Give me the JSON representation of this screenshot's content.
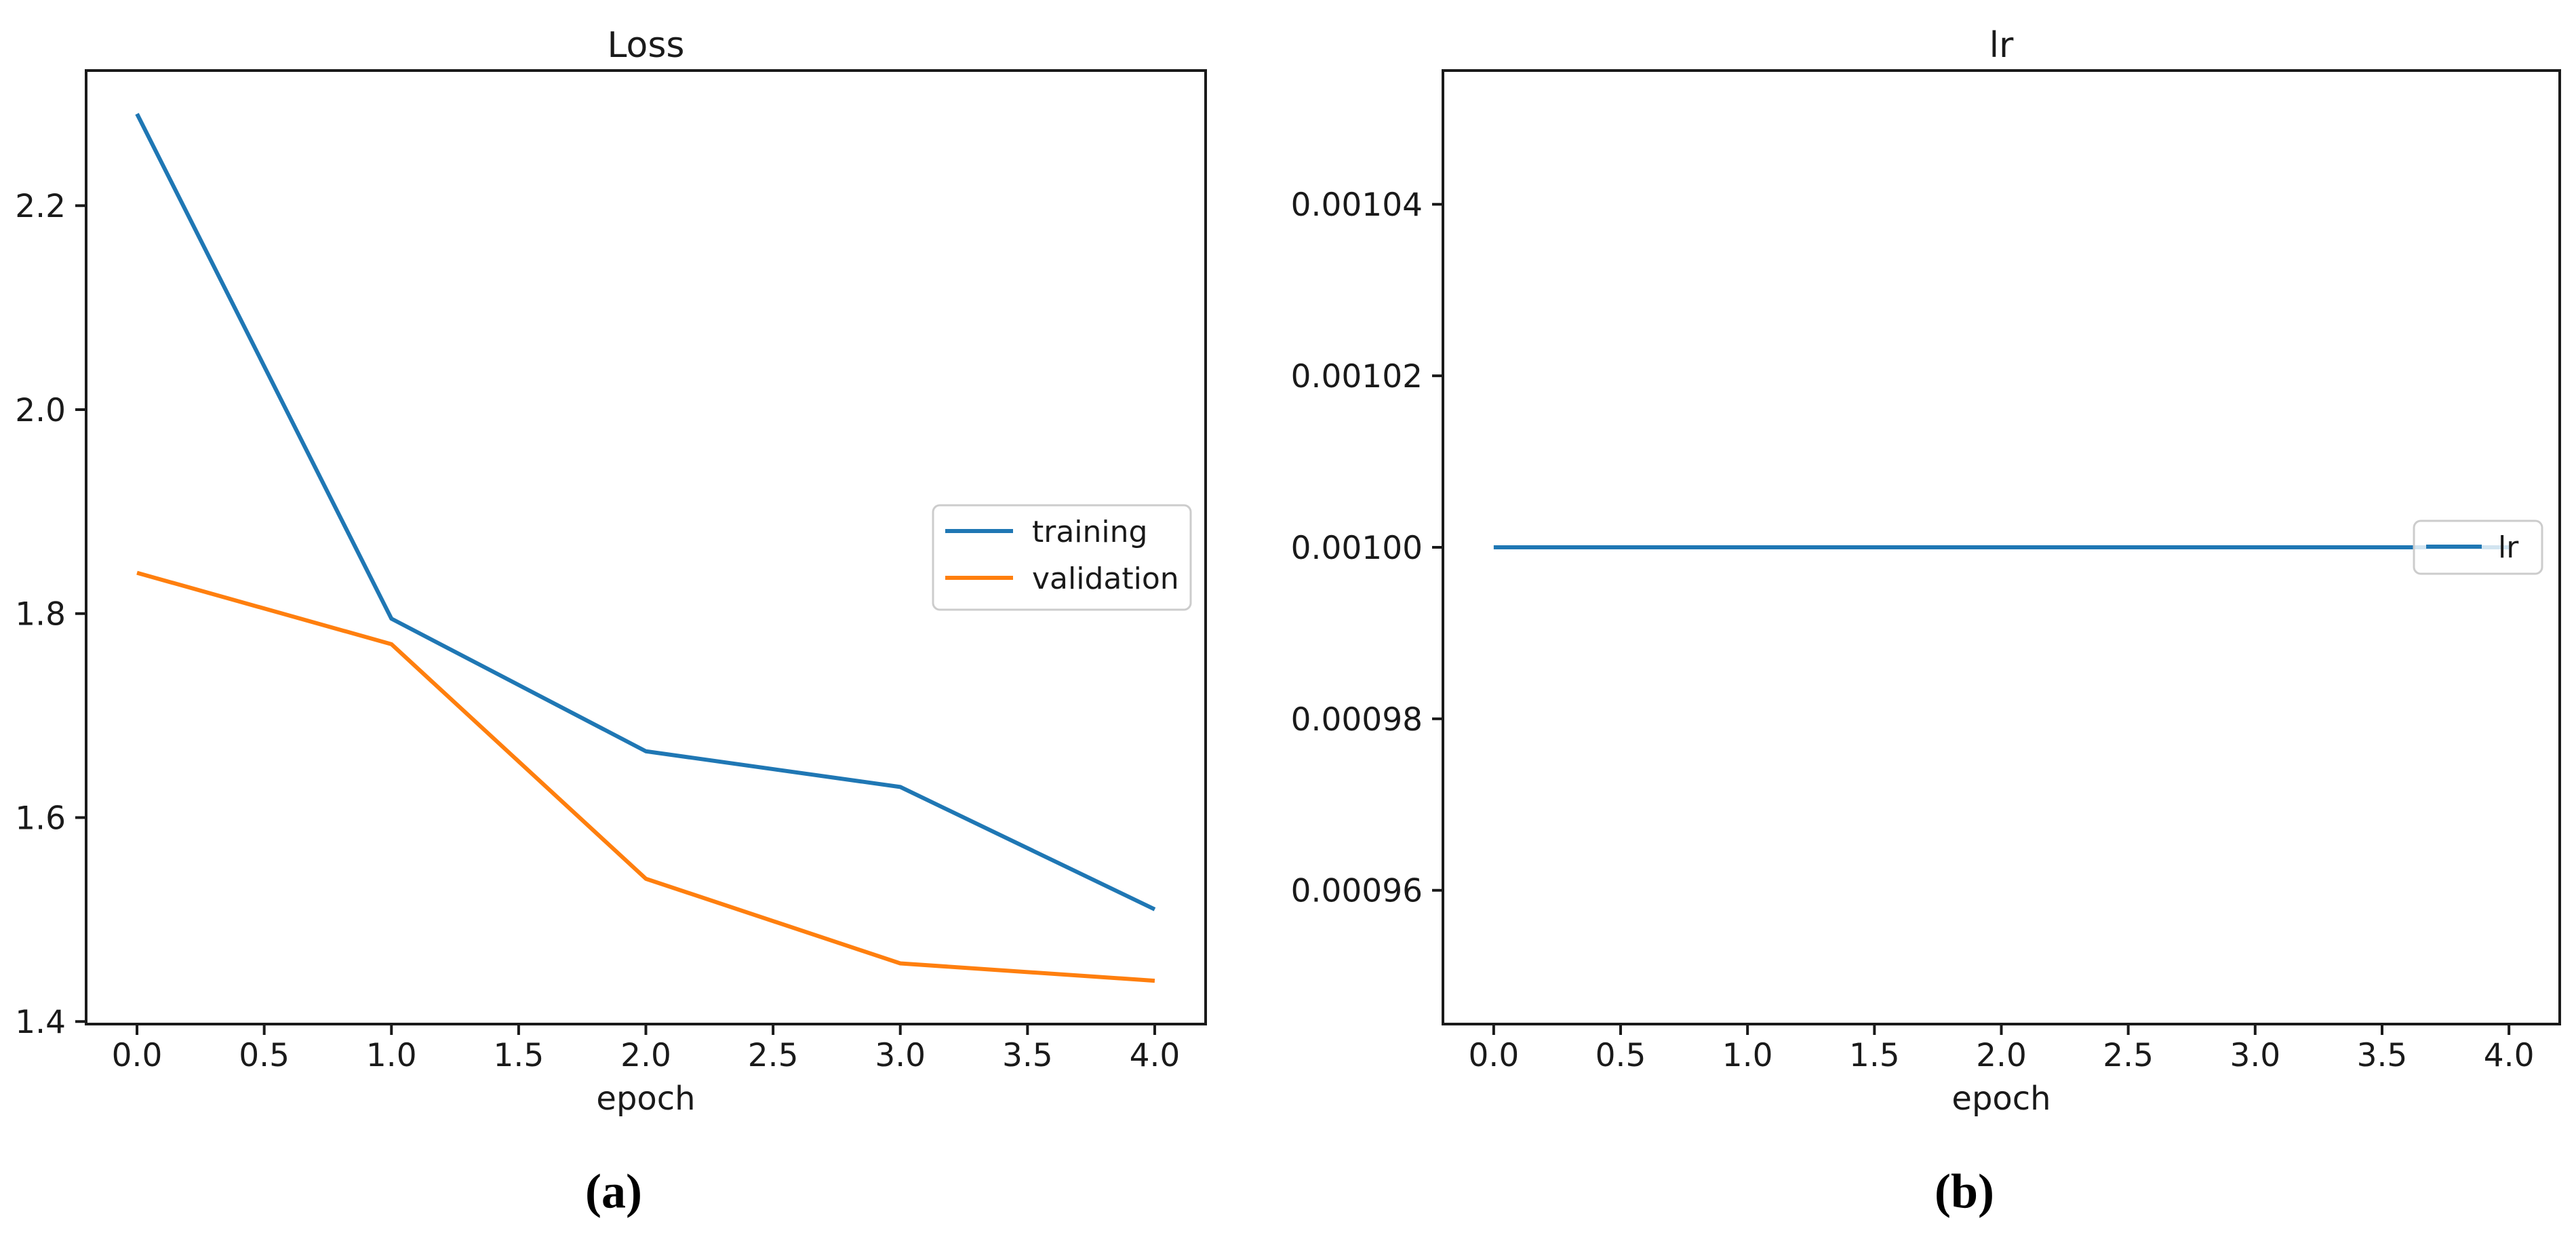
{
  "figure": {
    "background": "#ffffff",
    "captions": {
      "a": "(a)",
      "b": "(b)"
    }
  },
  "colors": {
    "training_blue": "#1f77b4",
    "validation_orange": "#ff7f0e",
    "axis_and_text": "#1a1a1a",
    "legend_border": "#cccccc",
    "legend_fill": "rgba(255,255,255,0.8)"
  },
  "chart_data": [
    {
      "type": "line",
      "title": "Loss",
      "xlabel": "epoch",
      "ylabel": "",
      "grid": false,
      "x": [
        0,
        1,
        2,
        3,
        4
      ],
      "series": [
        {
          "name": "training",
          "color": "#1f77b4",
          "values": [
            2.29,
            1.795,
            1.665,
            1.63,
            1.51
          ]
        },
        {
          "name": "validation",
          "color": "#ff7f0e",
          "values": [
            1.84,
            1.77,
            1.54,
            1.457,
            1.44
          ]
        }
      ],
      "xlim": [
        -0.2,
        4.2
      ],
      "ylim": [
        1.3975,
        2.3325
      ],
      "xticks": {
        "values": [
          0.0,
          0.5,
          1.0,
          1.5,
          2.0,
          2.5,
          3.0,
          3.5,
          4.0
        ],
        "labels": [
          "0.0",
          "0.5",
          "1.0",
          "1.5",
          "2.0",
          "2.5",
          "3.0",
          "3.5",
          "4.0"
        ]
      },
      "yticks": {
        "values": [
          1.4,
          1.6,
          1.8,
          2.0,
          2.2
        ],
        "labels": [
          "1.4",
          "1.6",
          "1.8",
          "2.0",
          "2.2"
        ]
      },
      "legend": {
        "labels": [
          "training",
          "validation"
        ],
        "position": "center right"
      }
    },
    {
      "type": "line",
      "title": "lr",
      "xlabel": "epoch",
      "ylabel": "",
      "grid": false,
      "x": [
        0,
        1,
        2,
        3,
        4
      ],
      "series": [
        {
          "name": "lr",
          "color": "#1f77b4",
          "values": [
            0.001,
            0.001,
            0.001,
            0.001,
            0.001
          ]
        }
      ],
      "xlim": [
        -0.2,
        4.2
      ],
      "ylim": [
        0.0009444,
        0.0010556
      ],
      "xticks": {
        "values": [
          0.0,
          0.5,
          1.0,
          1.5,
          2.0,
          2.5,
          3.0,
          3.5,
          4.0
        ],
        "labels": [
          "0.0",
          "0.5",
          "1.0",
          "1.5",
          "2.0",
          "2.5",
          "3.0",
          "3.5",
          "4.0"
        ]
      },
      "yticks": {
        "values": [
          0.00096,
          0.00098,
          0.001,
          0.00102,
          0.00104
        ],
        "labels": [
          "0.00096",
          "0.00098",
          "0.00100",
          "0.00102",
          "0.00104"
        ]
      },
      "legend": {
        "labels": [
          "lr"
        ],
        "position": "right"
      }
    }
  ]
}
